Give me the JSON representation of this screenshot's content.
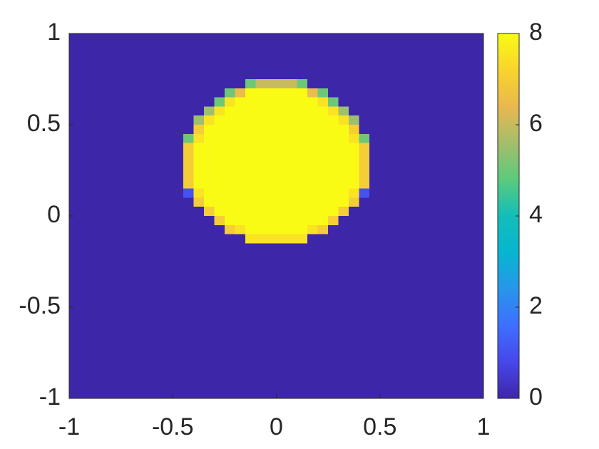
{
  "chart_data": {
    "type": "heatmap",
    "xlim": [
      -1,
      1
    ],
    "ylim": [
      -1,
      1
    ],
    "xticks": [
      -1,
      -0.5,
      0,
      0.5,
      1
    ],
    "yticks": [
      -1,
      -0.5,
      0,
      0.5,
      1
    ],
    "clim": [
      0,
      8
    ],
    "cticks": [
      0,
      2,
      4,
      6,
      8
    ],
    "colormap": [
      "#3e26a8",
      "#4747eb",
      "#3e6ffe",
      "#2796eb",
      "#08b5d0",
      "#12beb9",
      "#5bca7c",
      "#a5be6b",
      "#e9b84f",
      "#f9d42d",
      "#f9fb15"
    ],
    "z": [
      [
        0,
        0,
        0,
        0,
        0,
        0,
        0,
        0,
        0,
        0,
        0,
        0,
        0,
        0,
        0,
        0,
        0,
        0,
        0,
        0,
        0,
        0,
        0,
        0,
        0,
        0,
        0,
        0,
        0,
        0,
        0,
        0,
        0,
        0,
        0,
        0,
        0,
        0,
        0,
        0
      ],
      [
        0,
        0,
        0,
        0,
        0,
        0,
        0,
        0,
        0,
        0,
        0,
        0,
        0,
        0,
        0,
        0,
        0,
        0,
        0,
        0,
        0,
        0,
        0,
        0,
        0,
        0,
        0,
        0,
        0,
        0,
        0,
        0,
        0,
        0,
        0,
        0,
        0,
        0,
        0,
        0
      ],
      [
        0,
        0,
        0,
        0,
        0,
        0,
        0,
        0,
        0,
        0,
        0,
        0,
        0,
        0,
        0,
        0,
        0,
        0,
        0,
        0,
        0,
        0,
        0,
        0,
        0,
        0,
        0,
        0,
        0,
        0,
        0,
        0,
        0,
        0,
        0,
        0,
        0,
        0,
        0,
        0
      ],
      [
        0,
        0,
        0,
        0,
        0,
        0,
        0,
        0,
        0,
        0,
        0,
        0,
        0,
        0,
        0,
        0,
        0,
        0,
        0,
        0,
        0,
        0,
        0,
        0,
        0,
        0,
        0,
        0,
        0,
        0,
        0,
        0,
        0,
        0,
        0,
        0,
        0,
        0,
        0,
        0
      ],
      [
        0,
        0,
        0,
        0,
        0,
        0,
        0,
        0,
        0,
        0,
        0,
        0,
        0,
        0,
        0,
        0,
        0,
        0,
        0,
        0,
        0,
        0,
        0,
        0,
        0,
        0,
        0,
        0,
        0,
        0,
        0,
        0,
        0,
        0,
        0,
        0,
        0,
        0,
        0,
        0
      ],
      [
        0,
        0,
        0,
        0,
        0,
        0,
        0,
        0,
        0,
        0,
        0,
        0,
        0,
        0,
        0,
        0,
        0,
        5,
        6,
        6,
        6,
        6,
        5,
        0,
        0,
        0,
        0,
        0,
        0,
        0,
        0,
        0,
        0,
        0,
        0,
        0,
        0,
        0,
        0,
        0
      ],
      [
        0,
        0,
        0,
        0,
        0,
        0,
        0,
        0,
        0,
        0,
        0,
        0,
        0,
        0,
        0,
        5,
        6.5,
        8,
        8,
        8,
        8,
        8,
        8,
        6.5,
        5,
        0,
        0,
        0,
        0,
        0,
        0,
        0,
        0,
        0,
        0,
        0,
        0,
        0,
        0,
        0
      ],
      [
        0,
        0,
        0,
        0,
        0,
        0,
        0,
        0,
        0,
        0,
        0,
        0,
        0,
        0,
        5,
        7.5,
        8,
        8,
        8,
        8,
        8,
        8,
        8,
        8,
        7.5,
        5,
        0,
        0,
        0,
        0,
        0,
        0,
        0,
        0,
        0,
        0,
        0,
        0,
        0,
        0
      ],
      [
        0,
        0,
        0,
        0,
        0,
        0,
        0,
        0,
        0,
        0,
        0,
        0,
        0,
        5.5,
        7.5,
        8,
        8,
        8,
        8,
        8,
        8,
        8,
        8,
        8,
        8,
        7.5,
        5.5,
        0,
        0,
        0,
        0,
        0,
        0,
        0,
        0,
        0,
        0,
        0,
        0,
        0
      ],
      [
        0,
        0,
        0,
        0,
        0,
        0,
        0,
        0,
        0,
        0,
        0,
        0,
        5.5,
        7.5,
        8,
        8,
        8,
        8,
        8,
        8,
        8,
        8,
        8,
        8,
        8,
        8,
        7.5,
        5.5,
        0,
        0,
        0,
        0,
        0,
        0,
        0,
        0,
        0,
        0,
        0,
        0
      ],
      [
        0,
        0,
        0,
        0,
        0,
        0,
        0,
        0,
        0,
        0,
        0,
        0,
        7,
        8,
        8,
        8,
        8,
        8,
        8,
        8,
        8,
        8,
        8,
        8,
        8,
        8,
        8,
        7,
        0,
        0,
        0,
        0,
        0,
        0,
        0,
        0,
        0,
        0,
        0,
        0
      ],
      [
        0,
        0,
        0,
        0,
        0,
        0,
        0,
        0,
        0,
        0,
        0,
        5,
        7.5,
        8,
        8,
        8,
        8,
        8,
        8,
        8,
        8,
        8,
        8,
        8,
        8,
        8,
        8,
        7.5,
        5,
        0,
        0,
        0,
        0,
        0,
        0,
        0,
        0,
        0,
        0,
        0
      ],
      [
        0,
        0,
        0,
        0,
        0,
        0,
        0,
        0,
        0,
        0,
        0,
        7,
        8,
        8,
        8,
        8,
        8,
        8,
        8,
        8,
        8,
        8,
        8,
        8,
        8,
        8,
        8,
        8,
        7,
        0,
        0,
        0,
        0,
        0,
        0,
        0,
        0,
        0,
        0,
        0
      ],
      [
        0,
        0,
        0,
        0,
        0,
        0,
        0,
        0,
        0,
        0,
        0,
        7,
        8,
        8,
        8,
        8,
        8,
        8,
        8,
        8,
        8,
        8,
        8,
        8,
        8,
        8,
        8,
        8,
        7,
        0,
        0,
        0,
        0,
        0,
        0,
        0,
        0,
        0,
        0,
        0
      ],
      [
        0,
        0,
        0,
        0,
        0,
        0,
        0,
        0,
        0,
        0,
        0,
        7,
        8,
        8,
        8,
        8,
        8,
        8,
        8,
        8,
        8,
        8,
        8,
        8,
        8,
        8,
        8,
        8,
        7,
        0,
        0,
        0,
        0,
        0,
        0,
        0,
        0,
        0,
        0,
        0
      ],
      [
        0,
        0,
        0,
        0,
        0,
        0,
        0,
        0,
        0,
        0,
        0,
        7,
        8,
        8,
        8,
        8,
        8,
        8,
        8,
        8,
        8,
        8,
        8,
        8,
        8,
        8,
        8,
        8,
        7,
        0,
        0,
        0,
        0,
        0,
        0,
        0,
        0,
        0,
        0,
        0
      ],
      [
        0,
        0,
        0,
        0,
        0,
        0,
        0,
        0,
        0,
        0,
        0,
        7,
        8,
        8,
        8,
        8,
        8,
        8,
        8,
        8,
        8,
        8,
        8,
        8,
        8,
        8,
        8,
        8,
        7,
        0,
        0,
        0,
        0,
        0,
        0,
        0,
        0,
        0,
        0,
        0
      ],
      [
        0,
        0,
        0,
        0,
        0,
        0,
        0,
        0,
        0,
        0,
        0,
        1,
        7.5,
        8,
        8,
        8,
        8,
        8,
        8,
        8,
        8,
        8,
        8,
        8,
        8,
        8,
        8,
        7.5,
        1,
        0,
        0,
        0,
        0,
        0,
        0,
        0,
        0,
        0,
        0,
        0
      ],
      [
        0,
        0,
        0,
        0,
        0,
        0,
        0,
        0,
        0,
        0,
        0,
        0,
        7,
        8,
        8,
        8,
        8,
        8,
        8,
        8,
        8,
        8,
        8,
        8,
        8,
        8,
        8,
        7,
        0,
        0,
        0,
        0,
        0,
        0,
        0,
        0,
        0,
        0,
        0,
        0
      ],
      [
        0,
        0,
        0,
        0,
        0,
        0,
        0,
        0,
        0,
        0,
        0,
        0,
        0,
        7,
        8,
        8,
        8,
        8,
        8,
        8,
        8,
        8,
        8,
        8,
        8,
        8,
        7,
        0,
        0,
        0,
        0,
        0,
        0,
        0,
        0,
        0,
        0,
        0,
        0,
        0
      ],
      [
        0,
        0,
        0,
        0,
        0,
        0,
        0,
        0,
        0,
        0,
        0,
        0,
        0,
        0,
        7,
        8,
        8,
        8,
        8,
        8,
        8,
        8,
        8,
        8,
        8,
        7,
        0,
        0,
        0,
        0,
        0,
        0,
        0,
        0,
        0,
        0,
        0,
        0,
        0,
        0
      ],
      [
        0,
        0,
        0,
        0,
        0,
        0,
        0,
        0,
        0,
        0,
        0,
        0,
        0,
        0,
        0,
        7,
        7.5,
        8,
        8,
        8,
        8,
        8,
        8,
        7.5,
        7,
        0,
        0,
        0,
        0,
        0,
        0,
        0,
        0,
        0,
        0,
        0,
        0,
        0,
        0,
        0
      ],
      [
        0,
        0,
        0,
        0,
        0,
        0,
        0,
        0,
        0,
        0,
        0,
        0,
        0,
        0,
        0,
        0,
        0,
        7.5,
        7.5,
        7.5,
        7.5,
        7.5,
        7.5,
        0,
        0,
        0,
        0,
        0,
        0,
        0,
        0,
        0,
        0,
        0,
        0,
        0,
        0,
        0,
        0,
        0
      ],
      [
        0,
        0,
        0,
        0,
        0,
        0,
        0,
        0,
        0,
        0,
        0,
        0,
        0,
        0,
        0,
        0,
        0,
        0,
        0,
        0,
        0,
        0,
        0,
        0,
        0,
        0,
        0,
        0,
        0,
        0,
        0,
        0,
        0,
        0,
        0,
        0,
        0,
        0,
        0,
        0
      ],
      [
        0,
        0,
        0,
        0,
        0,
        0,
        0,
        0,
        0,
        0,
        0,
        0,
        0,
        0,
        0,
        0,
        0,
        0,
        0,
        0,
        0,
        0,
        0,
        0,
        0,
        0,
        0,
        0,
        0,
        0,
        0,
        0,
        0,
        0,
        0,
        0,
        0,
        0,
        0,
        0
      ],
      [
        0,
        0,
        0,
        0,
        0,
        0,
        0,
        0,
        0,
        0,
        0,
        0,
        0,
        0,
        0,
        0,
        0,
        0,
        0,
        0,
        0,
        0,
        0,
        0,
        0,
        0,
        0,
        0,
        0,
        0,
        0,
        0,
        0,
        0,
        0,
        0,
        0,
        0,
        0,
        0
      ],
      [
        0,
        0,
        0,
        0,
        0,
        0,
        0,
        0,
        0,
        0,
        0,
        0,
        0,
        0,
        0,
        0,
        0,
        0,
        0,
        0,
        0,
        0,
        0,
        0,
        0,
        0,
        0,
        0,
        0,
        0,
        0,
        0,
        0,
        0,
        0,
        0,
        0,
        0,
        0,
        0
      ],
      [
        0,
        0,
        0,
        0,
        0,
        0,
        0,
        0,
        0,
        0,
        0,
        0,
        0,
        0,
        0,
        0,
        0,
        0,
        0,
        0,
        0,
        0,
        0,
        0,
        0,
        0,
        0,
        0,
        0,
        0,
        0,
        0,
        0,
        0,
        0,
        0,
        0,
        0,
        0,
        0
      ],
      [
        0,
        0,
        0,
        0,
        0,
        0,
        0,
        0,
        0,
        0,
        0,
        0,
        0,
        0,
        0,
        0,
        0,
        0,
        0,
        0,
        0,
        0,
        0,
        0,
        0,
        0,
        0,
        0,
        0,
        0,
        0,
        0,
        0,
        0,
        0,
        0,
        0,
        0,
        0,
        0
      ],
      [
        0,
        0,
        0,
        0,
        0,
        0,
        0,
        0,
        0,
        0,
        0,
        0,
        0,
        0,
        0,
        0,
        0,
        0,
        0,
        0,
        0,
        0,
        0,
        0,
        0,
        0,
        0,
        0,
        0,
        0,
        0,
        0,
        0,
        0,
        0,
        0,
        0,
        0,
        0,
        0
      ],
      [
        0,
        0,
        0,
        0,
        0,
        0,
        0,
        0,
        0,
        0,
        0,
        0,
        0,
        0,
        0,
        0,
        0,
        0,
        0,
        0,
        0,
        0,
        0,
        0,
        0,
        0,
        0,
        0,
        0,
        0,
        0,
        0,
        0,
        0,
        0,
        0,
        0,
        0,
        0,
        0
      ],
      [
        0,
        0,
        0,
        0,
        0,
        0,
        0,
        0,
        0,
        0,
        0,
        0,
        0,
        0,
        0,
        0,
        0,
        0,
        0,
        0,
        0,
        0,
        0,
        0,
        0,
        0,
        0,
        0,
        0,
        0,
        0,
        0,
        0,
        0,
        0,
        0,
        0,
        0,
        0,
        0
      ],
      [
        0,
        0,
        0,
        0,
        0,
        0,
        0,
        0,
        0,
        0,
        0,
        0,
        0,
        0,
        0,
        0,
        0,
        0,
        0,
        0,
        0,
        0,
        0,
        0,
        0,
        0,
        0,
        0,
        0,
        0,
        0,
        0,
        0,
        0,
        0,
        0,
        0,
        0,
        0,
        0
      ],
      [
        0,
        0,
        0,
        0,
        0,
        0,
        0,
        0,
        0,
        0,
        0,
        0,
        0,
        0,
        0,
        0,
        0,
        0,
        0,
        0,
        0,
        0,
        0,
        0,
        0,
        0,
        0,
        0,
        0,
        0,
        0,
        0,
        0,
        0,
        0,
        0,
        0,
        0,
        0,
        0
      ],
      [
        0,
        0,
        0,
        0,
        0,
        0,
        0,
        0,
        0,
        0,
        0,
        0,
        0,
        0,
        0,
        0,
        0,
        0,
        0,
        0,
        0,
        0,
        0,
        0,
        0,
        0,
        0,
        0,
        0,
        0,
        0,
        0,
        0,
        0,
        0,
        0,
        0,
        0,
        0,
        0
      ],
      [
        0,
        0,
        0,
        0,
        0,
        0,
        0,
        0,
        0,
        0,
        0,
        0,
        0,
        0,
        0,
        0,
        0,
        0,
        0,
        0,
        0,
        0,
        0,
        0,
        0,
        0,
        0,
        0,
        0,
        0,
        0,
        0,
        0,
        0,
        0,
        0,
        0,
        0,
        0,
        0
      ],
      [
        0,
        0,
        0,
        0,
        0,
        0,
        0,
        0,
        0,
        0,
        0,
        0,
        0,
        0,
        0,
        0,
        0,
        0,
        0,
        0,
        0,
        0,
        0,
        0,
        0,
        0,
        0,
        0,
        0,
        0,
        0,
        0,
        0,
        0,
        0,
        0,
        0,
        0,
        0,
        0
      ],
      [
        0,
        0,
        0,
        0,
        0,
        0,
        0,
        0,
        0,
        0,
        0,
        0,
        0,
        0,
        0,
        0,
        0,
        0,
        0,
        0,
        0,
        0,
        0,
        0,
        0,
        0,
        0,
        0,
        0,
        0,
        0,
        0,
        0,
        0,
        0,
        0,
        0,
        0,
        0,
        0
      ],
      [
        0,
        0,
        0,
        0,
        0,
        0,
        0,
        0,
        0,
        0,
        0,
        0,
        0,
        0,
        0,
        0,
        0,
        0,
        0,
        0,
        0,
        0,
        0,
        0,
        0,
        0,
        0,
        0,
        0,
        0,
        0,
        0,
        0,
        0,
        0,
        0,
        0,
        0,
        0,
        0
      ],
      [
        0,
        0,
        0,
        0,
        0,
        0,
        0,
        0,
        0,
        0,
        0,
        0,
        0,
        0,
        0,
        0,
        0,
        0,
        0,
        0,
        0,
        0,
        0,
        0,
        0,
        0,
        0,
        0,
        0,
        0,
        0,
        0,
        0,
        0,
        0,
        0,
        0,
        0,
        0,
        0
      ]
    ]
  }
}
